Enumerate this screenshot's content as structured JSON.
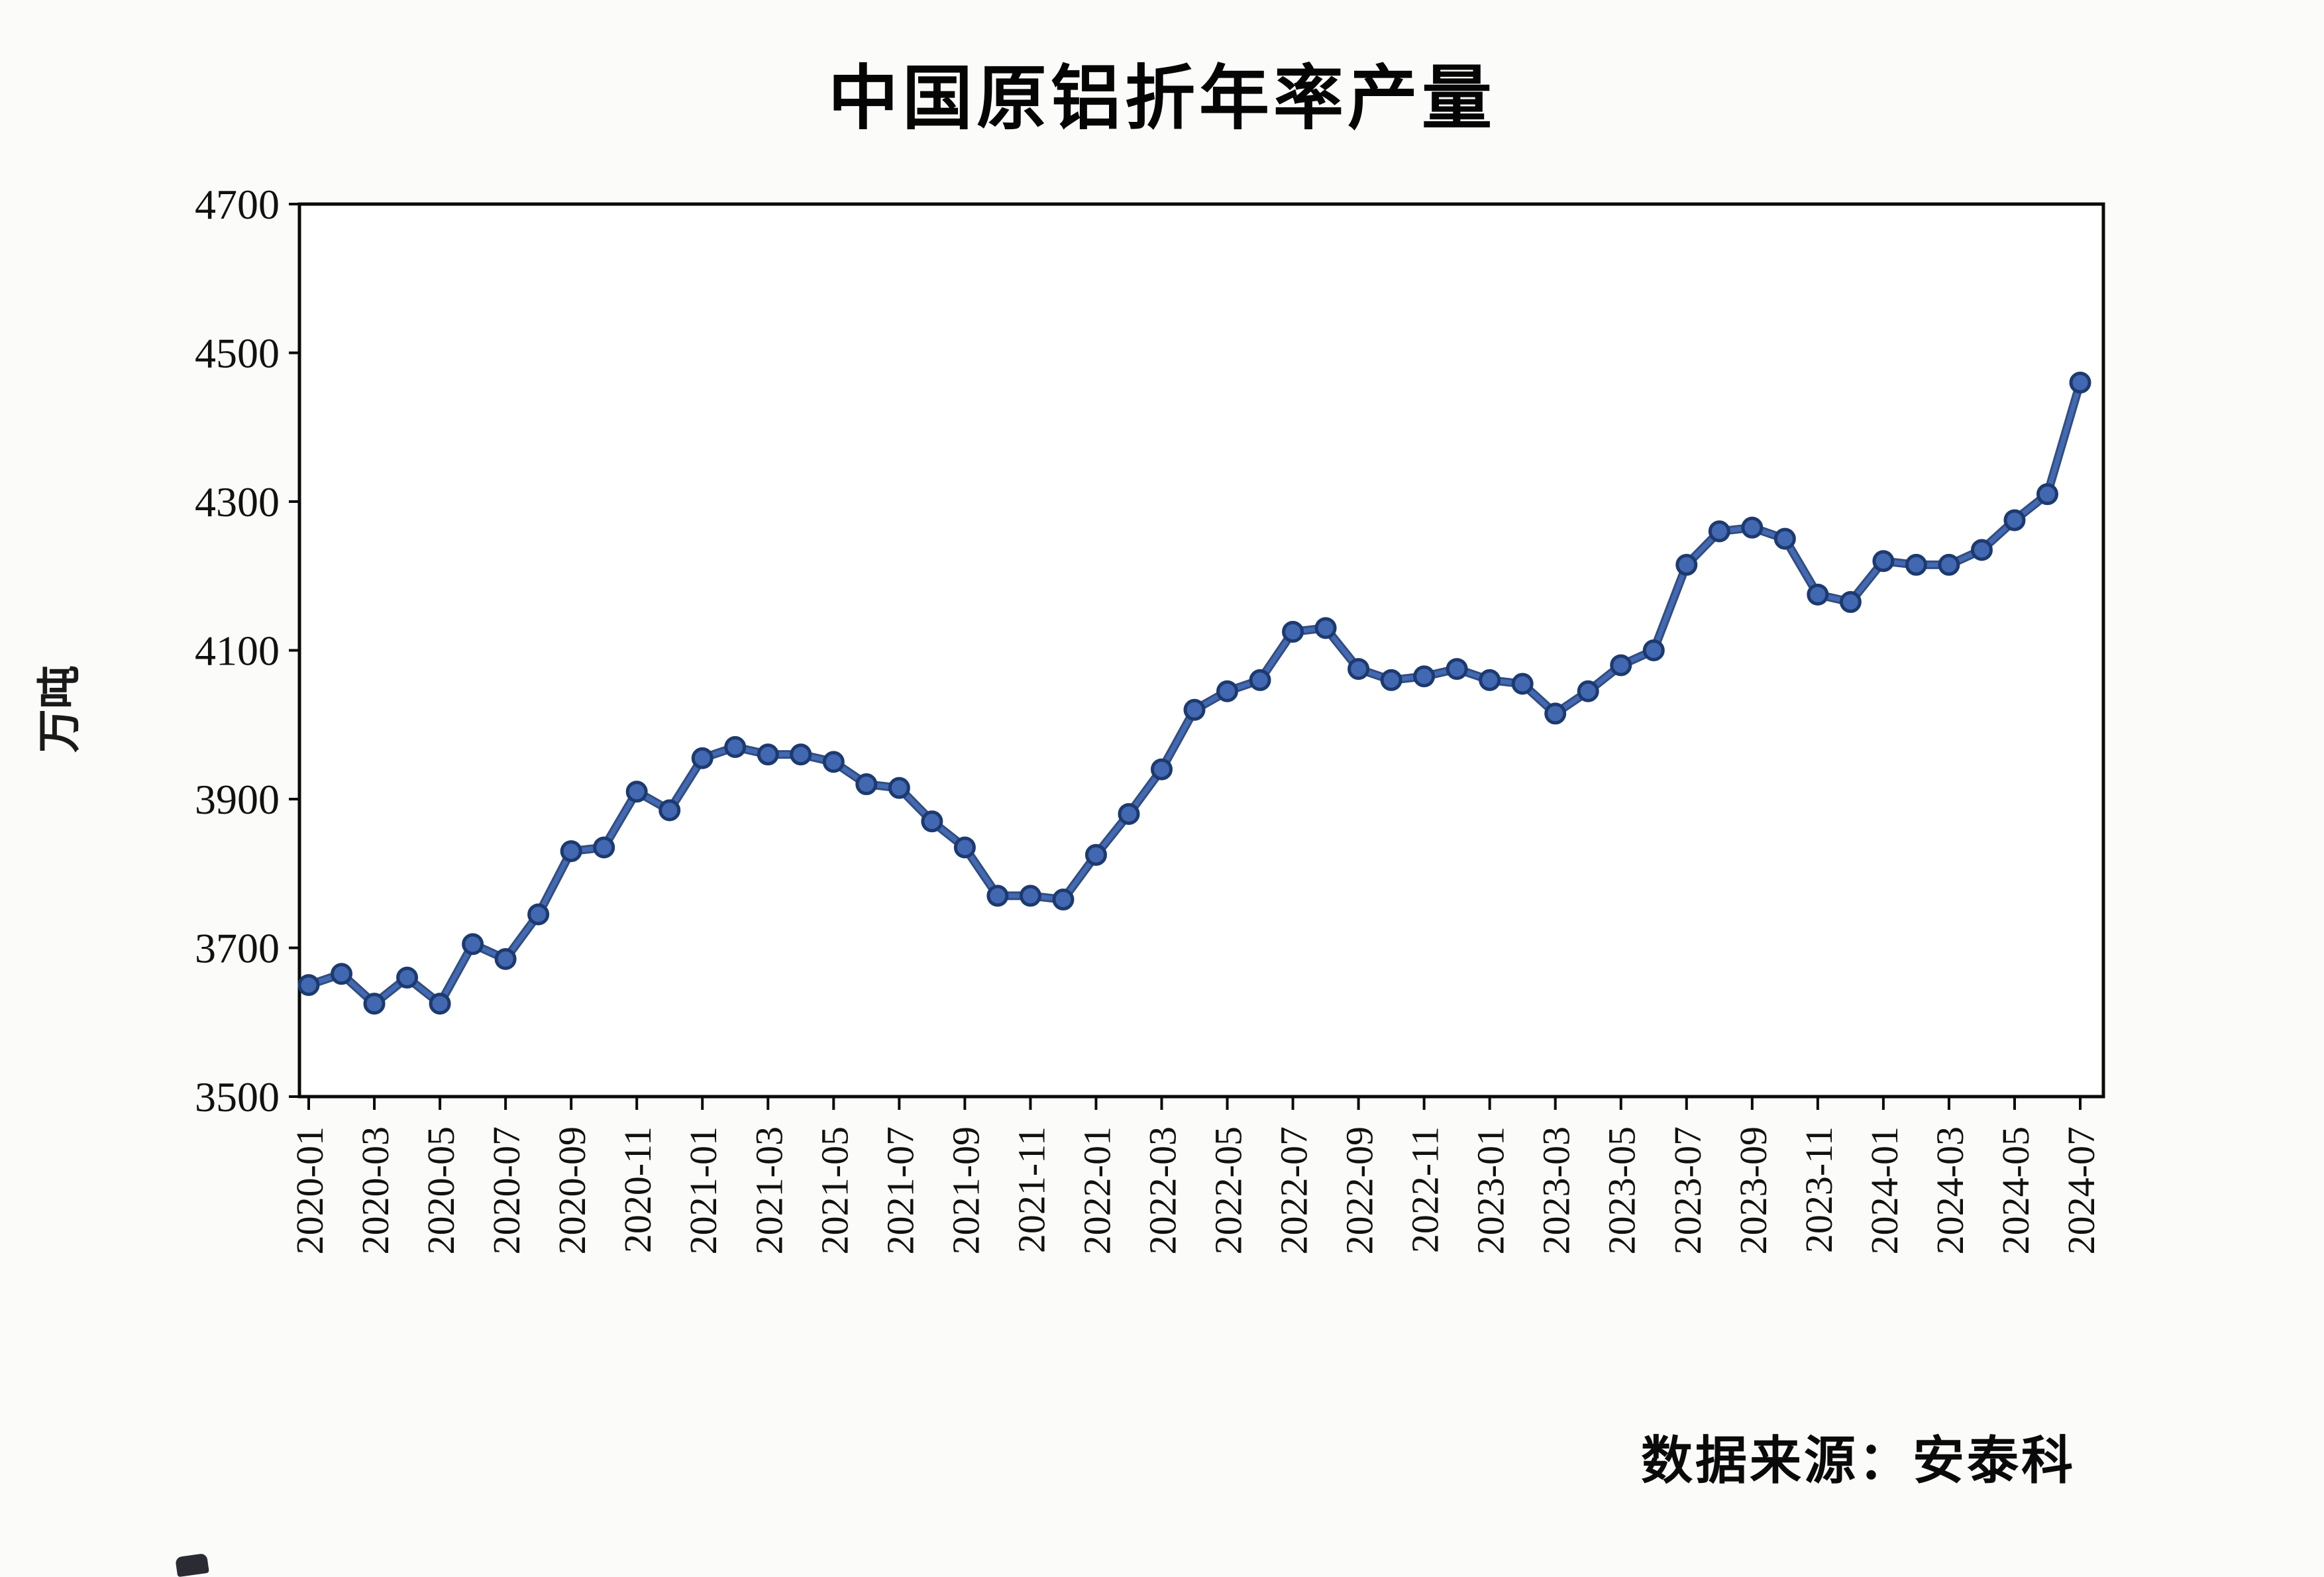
{
  "title": "中国原铝折年率产量",
  "y_axis": {
    "label": "万吨",
    "ticks": [
      3500,
      3700,
      3900,
      4100,
      4300,
      4500,
      4700
    ]
  },
  "source": "数据来源：安泰科",
  "colors": {
    "line_core": "#4269b4",
    "line_edge": "#1d3a6f",
    "dot_fill": "#4168b1",
    "dot_edge": "#1d3a6f",
    "axis": "#0a0a0a",
    "tick_text": "#111111"
  },
  "chart_data": {
    "type": "line",
    "title": "中国原铝折年率产量",
    "xlabel": "",
    "ylabel": "万吨",
    "ylim": [
      3500,
      4700
    ],
    "ytick_step": 200,
    "grid": false,
    "legend": "none",
    "x_label_every": 2,
    "x_label_rotation": -90,
    "categories": [
      "2020-01",
      "2020-02",
      "2020-03",
      "2020-04",
      "2020-05",
      "2020-06",
      "2020-07",
      "2020-08",
      "2020-09",
      "2020-10",
      "2020-11",
      "2020-12",
      "2021-01",
      "2021-02",
      "2021-03",
      "2021-04",
      "2021-05",
      "2021-06",
      "2021-07",
      "2021-08",
      "2021-09",
      "2021-10",
      "2021-11",
      "2021-12",
      "2022-01",
      "2022-02",
      "2022-03",
      "2022-04",
      "2022-05",
      "2022-06",
      "2022-07",
      "2022-08",
      "2022-09",
      "2022-10",
      "2022-11",
      "2022-12",
      "2023-01",
      "2023-02",
      "2023-03",
      "2023-04",
      "2023-05",
      "2023-06",
      "2023-07",
      "2023-08",
      "2023-09",
      "2023-10",
      "2023-11",
      "2023-12",
      "2024-01",
      "2024-02",
      "2024-03",
      "2024-04",
      "2024-05",
      "2024-06",
      "2024-07"
    ],
    "values": [
      3650,
      3665,
      3625,
      3660,
      3625,
      3705,
      3685,
      3745,
      3830,
      3835,
      3910,
      3885,
      3955,
      3970,
      3960,
      3960,
      3950,
      3920,
      3915,
      3870,
      3835,
      3770,
      3770,
      3765,
      3825,
      3880,
      3940,
      4020,
      4045,
      4060,
      4125,
      4130,
      4075,
      4060,
      4065,
      4075,
      4060,
      4055,
      4015,
      4045,
      4080,
      4100,
      4215,
      4260,
      4265,
      4250,
      4175,
      4165,
      4220,
      4215,
      4215,
      4235,
      4275,
      4310,
      4460
    ]
  }
}
